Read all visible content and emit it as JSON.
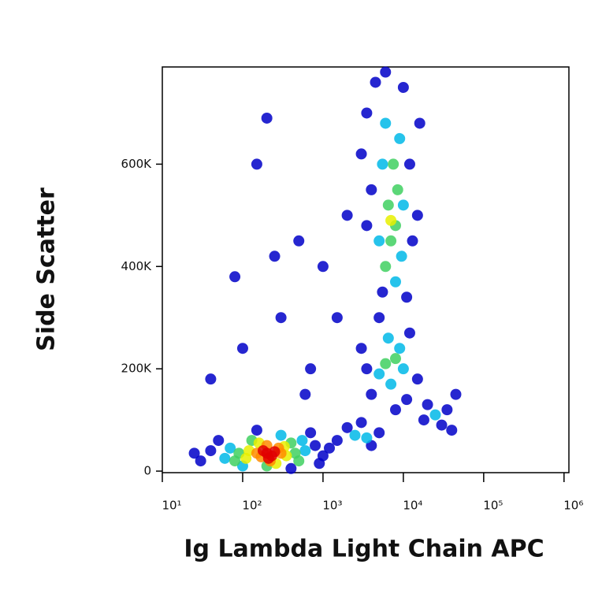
{
  "chart_data": {
    "type": "scatter",
    "xlabel": "Ig Lambda Light Chain APC",
    "ylabel": "Side Scatter",
    "xscale": "log",
    "xlim": [
      10,
      1150000
    ],
    "xticks": [
      {
        "value": 10,
        "label": "10¹"
      },
      {
        "value": 100,
        "label": "10²"
      },
      {
        "value": 1000,
        "label": "10³"
      },
      {
        "value": 10000,
        "label": "10⁴"
      },
      {
        "value": 100000,
        "label": "10⁵"
      },
      {
        "value": 1000000,
        "label": "10⁶"
      }
    ],
    "ylim": [
      -3000,
      790000
    ],
    "yticks": [
      {
        "value": 0,
        "label": "0"
      },
      {
        "value": 200000,
        "label": "200K"
      },
      {
        "value": 400000,
        "label": "400K"
      },
      {
        "value": 600000,
        "label": "600K"
      }
    ],
    "series": [
      {
        "color": "#0000c8",
        "x": [
          40,
          30,
          800,
          1000,
          50,
          700,
          25,
          400,
          150,
          900,
          1500,
          2000,
          4000,
          5000,
          1200,
          3000,
          3500,
          4000,
          12000,
          15000,
          5000,
          11000,
          3000,
          8000,
          30000,
          20000,
          35000,
          40000,
          18000,
          45000,
          4000,
          3500,
          12000,
          4500,
          13000,
          5500,
          15000,
          3500,
          10000,
          11000,
          3000,
          6000,
          16000,
          40,
          80,
          200,
          150,
          300,
          500,
          700,
          1000,
          1500,
          600,
          2000,
          100,
          250
        ],
        "values": [
          40000,
          20000,
          50000,
          30000,
          60000,
          75000,
          35000,
          5000,
          80000,
          15000,
          60000,
          85000,
          50000,
          75000,
          45000,
          95000,
          200000,
          150000,
          270000,
          180000,
          300000,
          140000,
          240000,
          120000,
          90000,
          130000,
          120000,
          80000,
          100000,
          150000,
          550000,
          700000,
          600000,
          760000,
          450000,
          350000,
          500000,
          480000,
          750000,
          340000,
          620000,
          780000,
          680000,
          180000,
          380000,
          690000,
          600000,
          300000,
          450000,
          200000,
          400000,
          300000,
          150000,
          500000,
          240000,
          420000
        ]
      },
      {
        "color": "#00b8e8",
        "x": [
          70,
          600,
          100,
          300,
          550,
          60,
          2500,
          3500,
          5000,
          9000,
          7000,
          6500,
          10000,
          25000,
          5500,
          9500,
          6000,
          10000,
          5000,
          8000,
          9000
        ],
        "values": [
          45000,
          40000,
          10000,
          70000,
          60000,
          25000,
          70000,
          65000,
          190000,
          240000,
          170000,
          260000,
          200000,
          110000,
          600000,
          420000,
          680000,
          520000,
          450000,
          370000,
          650000
        ]
      },
      {
        "color": "#40d060",
        "x": [
          90,
          450,
          130,
          200,
          400,
          80,
          500,
          6000,
          8000,
          7000,
          6500,
          8000,
          7500,
          6000,
          8500
        ],
        "values": [
          35000,
          35000,
          60000,
          10000,
          55000,
          20000,
          20000,
          210000,
          220000,
          450000,
          520000,
          480000,
          600000,
          400000,
          550000
        ]
      },
      {
        "color": "#e8f000",
        "x": [
          120,
          350,
          160,
          260,
          330,
          110,
          7000
        ],
        "values": [
          40000,
          30000,
          55000,
          15000,
          48000,
          25000,
          490000
        ]
      },
      {
        "color": "#ff8c00",
        "x": [
          150,
          300,
          200,
          220,
          280,
          170
        ],
        "values": [
          35000,
          35000,
          50000,
          20000,
          45000,
          28000
        ]
      },
      {
        "color": "#e00000",
        "x": [
          200,
          230,
          180,
          250,
          210
        ],
        "values": [
          35000,
          30000,
          40000,
          38000,
          25000
        ]
      }
    ]
  }
}
